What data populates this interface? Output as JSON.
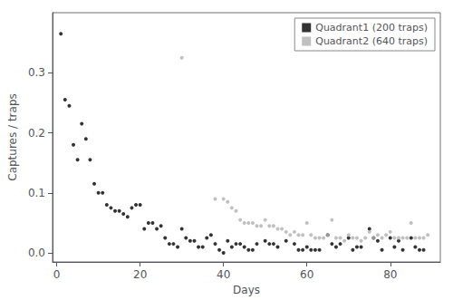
{
  "chart_data": {
    "type": "scatter",
    "xlabel": "Days",
    "ylabel": "Captures / traps",
    "series": [
      {
        "name": "Quadrant1 (200 traps)",
        "color": "#000000",
        "marker": "circle",
        "x": [
          1,
          2,
          3,
          4,
          5,
          6,
          7,
          8,
          9,
          10,
          11,
          12,
          13,
          14,
          15,
          16,
          17,
          18,
          19,
          20,
          21,
          22,
          23,
          24,
          25,
          26,
          27,
          28,
          29,
          30,
          31,
          32,
          33,
          34,
          35,
          36,
          37,
          38,
          39,
          40,
          41,
          42,
          43,
          44,
          45,
          46,
          47,
          48,
          50,
          51,
          52,
          53,
          55,
          57,
          58,
          59,
          60,
          61,
          62,
          63,
          65,
          66,
          67,
          68,
          70,
          71,
          72,
          73,
          75,
          76,
          77,
          78,
          80,
          81,
          82,
          83,
          85,
          86,
          87,
          88
        ],
        "values": [
          0.365,
          0.255,
          0.245,
          0.18,
          0.155,
          0.215,
          0.19,
          0.155,
          0.115,
          0.1,
          0.1,
          0.08,
          0.075,
          0.07,
          0.07,
          0.065,
          0.06,
          0.075,
          0.08,
          0.08,
          0.04,
          0.05,
          0.05,
          0.04,
          0.045,
          0.025,
          0.015,
          0.015,
          0.01,
          0.04,
          0.025,
          0.02,
          0.02,
          0.01,
          0.01,
          0.025,
          0.03,
          0.015,
          0.005,
          0.0,
          0.02,
          0.01,
          0.015,
          0.015,
          0.01,
          0.005,
          0.005,
          0.015,
          0.02,
          0.015,
          0.015,
          0.01,
          0.02,
          0.015,
          0.005,
          0.005,
          0.01,
          0.005,
          0.005,
          0.005,
          0.03,
          0.015,
          0.01,
          0.015,
          0.025,
          0.005,
          0.01,
          0.01,
          0.04,
          0.025,
          0.02,
          0.005,
          0.025,
          0.01,
          0.02,
          0.005,
          0.025,
          0.01,
          0.005,
          0.005
        ]
      },
      {
        "name": "Quadrant2 (640 traps)",
        "color": "#b0b0b0",
        "marker": "circle",
        "x": [
          30,
          38,
          40,
          41,
          42,
          43,
          44,
          45,
          46,
          47,
          48,
          49,
          50,
          51,
          52,
          53,
          54,
          55,
          56,
          57,
          58,
          59,
          60,
          61,
          62,
          63,
          64,
          65,
          66,
          67,
          68,
          69,
          70,
          71,
          72,
          73,
          74,
          75,
          76,
          77,
          78,
          79,
          80,
          81,
          82,
          83,
          84,
          85,
          86,
          87,
          88,
          89
        ],
        "values": [
          0.325,
          0.09,
          0.09,
          0.085,
          0.075,
          0.07,
          0.055,
          0.05,
          0.05,
          0.05,
          0.045,
          0.045,
          0.055,
          0.045,
          0.045,
          0.04,
          0.04,
          0.035,
          0.03,
          0.035,
          0.03,
          0.03,
          0.05,
          0.03,
          0.025,
          0.025,
          0.025,
          0.03,
          0.055,
          0.025,
          0.025,
          0.02,
          0.03,
          0.025,
          0.025,
          0.02,
          0.025,
          0.035,
          0.025,
          0.03,
          0.025,
          0.03,
          0.035,
          0.025,
          0.025,
          0.025,
          0.025,
          0.05,
          0.025,
          0.025,
          0.025,
          0.03
        ]
      }
    ],
    "xlim": [
      -1,
      92
    ],
    "ylim": [
      -0.015,
      0.4
    ],
    "xticks": [
      0,
      20,
      40,
      60,
      80
    ],
    "yticks": [
      {
        "value": 0.0,
        "label": "0.0"
      },
      0.1,
      0.2,
      0.3
    ],
    "grid": false,
    "legend": "upper right"
  }
}
